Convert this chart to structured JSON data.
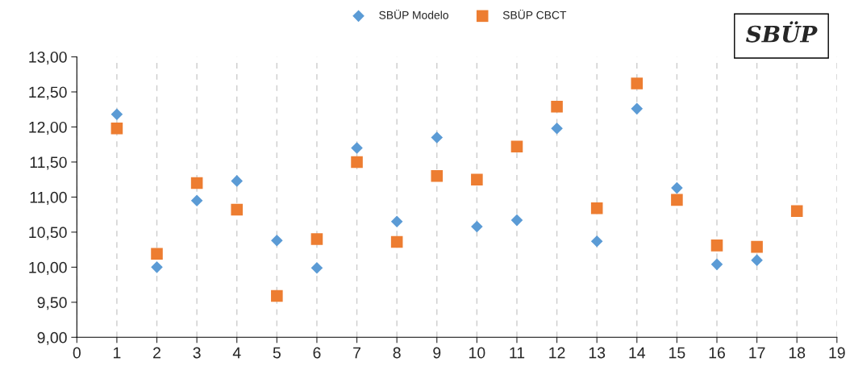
{
  "chart_data": {
    "type": "scatter",
    "title": "SBÜP",
    "x": [
      1,
      2,
      3,
      4,
      5,
      6,
      7,
      8,
      9,
      10,
      11,
      12,
      13,
      14,
      15,
      16,
      17,
      18
    ],
    "series": [
      {
        "name": "SBÜP Modelo",
        "color": "#5b9bd5",
        "marker": "diamond",
        "values": [
          12.18,
          10.0,
          10.95,
          11.23,
          10.38,
          9.99,
          11.7,
          10.65,
          11.85,
          10.58,
          10.67,
          11.98,
          10.37,
          12.26,
          11.13,
          10.04,
          10.1,
          null
        ]
      },
      {
        "name": "SBÜP CBCT",
        "color": "#ed7d31",
        "marker": "square",
        "values": [
          11.98,
          10.19,
          11.2,
          10.82,
          9.59,
          10.4,
          11.5,
          10.36,
          11.3,
          11.25,
          11.72,
          12.29,
          10.84,
          12.62,
          10.96,
          10.31,
          10.29,
          10.8
        ]
      }
    ],
    "xlim": [
      0,
      19
    ],
    "xticks": [
      0,
      1,
      2,
      3,
      4,
      5,
      6,
      7,
      8,
      9,
      10,
      11,
      12,
      13,
      14,
      15,
      16,
      17,
      18,
      19
    ],
    "ylim": [
      9,
      13
    ],
    "yticks": [
      {
        "value": 9,
        "label": "9,00"
      },
      {
        "value": 9.5,
        "label": "9,50"
      },
      {
        "value": 10,
        "label": "10,00"
      },
      {
        "value": 10.5,
        "label": "10,50"
      },
      {
        "value": 11,
        "label": "11,00"
      },
      {
        "value": 11.5,
        "label": "11,50"
      },
      {
        "value": 12,
        "label": "12,00"
      },
      {
        "value": 12.5,
        "label": "12,50"
      },
      {
        "value": 13,
        "label": "13,00"
      }
    ],
    "grid": "x",
    "legend": "top"
  }
}
